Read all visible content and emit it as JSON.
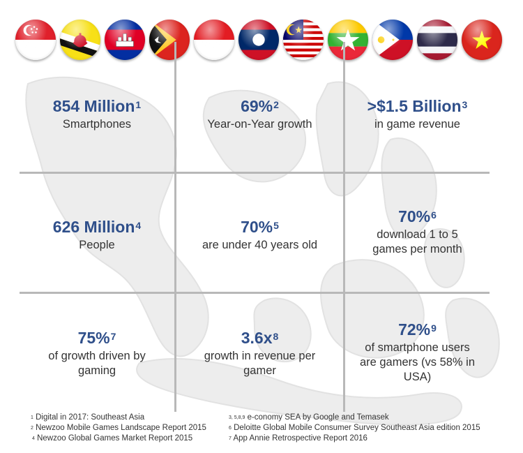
{
  "flags": [
    {
      "country": "Singapore",
      "icon": "singapore-flag-icon"
    },
    {
      "country": "Brunei",
      "icon": "brunei-flag-icon"
    },
    {
      "country": "Cambodia",
      "icon": "cambodia-flag-icon"
    },
    {
      "country": "Timor-Leste",
      "icon": "timor-leste-flag-icon"
    },
    {
      "country": "Indonesia",
      "icon": "indonesia-flag-icon"
    },
    {
      "country": "Laos",
      "icon": "laos-flag-icon"
    },
    {
      "country": "Malaysia",
      "icon": "malaysia-flag-icon"
    },
    {
      "country": "Myanmar",
      "icon": "myanmar-flag-icon"
    },
    {
      "country": "Philippines",
      "icon": "philippines-flag-icon"
    },
    {
      "country": "Thailand",
      "icon": "thailand-flag-icon"
    },
    {
      "country": "Vietnam",
      "icon": "vietnam-flag-icon"
    }
  ],
  "stats": [
    {
      "value": "854 Million",
      "sup": "1",
      "desc": [
        "Smartphones"
      ]
    },
    {
      "value": "69%",
      "sup": "2",
      "desc": [
        "Year-on-Year growth"
      ]
    },
    {
      "value": ">$1.5 Billion",
      "sup": "3",
      "desc": [
        "in game revenue"
      ]
    },
    {
      "value": "626 Million",
      "sup": "4",
      "desc": [
        "People"
      ]
    },
    {
      "value": "70%",
      "sup": "5",
      "desc": [
        "are under 40 years old"
      ]
    },
    {
      "value": "70%",
      "sup": "6",
      "desc": [
        "download 1 to 5",
        "games per month"
      ]
    },
    {
      "value": "75%",
      "sup": "7",
      "desc": [
        "of growth driven by",
        "gaming"
      ]
    },
    {
      "value": "3.6x",
      "sup": "8",
      "desc": [
        "growth in revenue per",
        "gamer"
      ]
    },
    {
      "value": "72%",
      "sup": "9",
      "desc": [
        "of smartphone users",
        "are gamers (vs 58% in",
        "USA)"
      ]
    }
  ],
  "footnotes_left": [
    {
      "sup": "1",
      "text": "Digital in 2017: Southeast Asia"
    },
    {
      "sup": "2",
      "text": "Newzoo Mobile Games Landscape Report 2015"
    },
    {
      "sup": "4",
      "text": "Newzoo Global Games Market Report 2015"
    }
  ],
  "footnotes_right": [
    {
      "sup": "3, 5,8,9",
      "text": "e-conomy SEA by Google and Temasek"
    },
    {
      "sup": "6",
      "text": "Deloitte Global Mobile Consumer Survey Southeast Asia edition 2015"
    },
    {
      "sup": "7",
      "text": "App Annie Retrospective Report 2016"
    }
  ],
  "colors": {
    "accent": "#2f4f8a",
    "text": "#333333",
    "grid": "#b8b8b8",
    "map": "#ececec"
  }
}
